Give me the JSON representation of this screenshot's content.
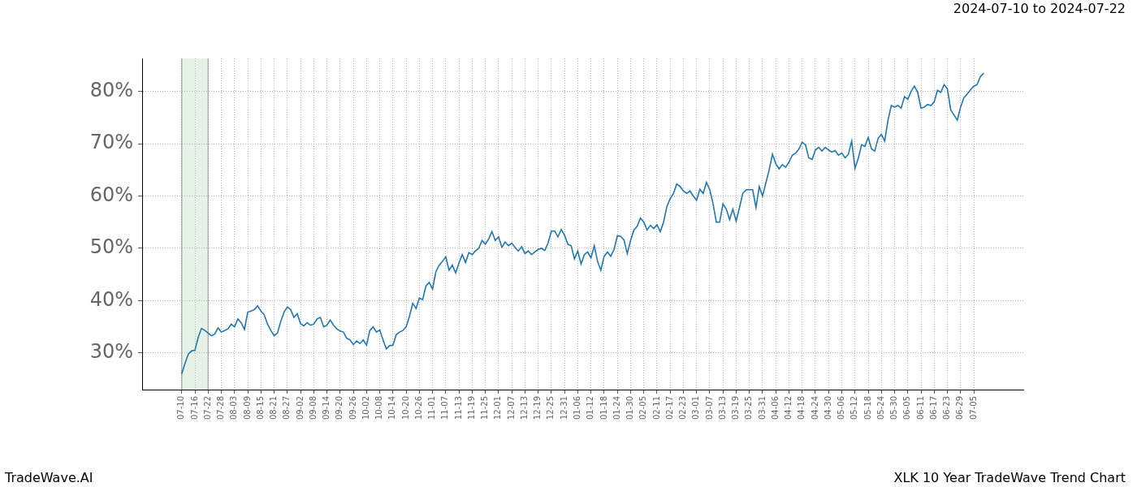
{
  "chart_data": {
    "type": "line",
    "title": "2024-07-10 to 2024-07-22",
    "footer_left": "TradeWave.AI",
    "footer_right": "XLK 10 Year TradeWave Trend Chart",
    "color": "#1f77b4",
    "grid": true,
    "shaded_range": [
      "07-10",
      "07-22"
    ],
    "ylim": [
      23,
      86.3
    ],
    "yticks": [
      {
        "value": 30,
        "label": "30%"
      },
      {
        "value": 40,
        "label": "40%"
      },
      {
        "value": 50,
        "label": "50%"
      },
      {
        "value": 60,
        "label": "60%"
      },
      {
        "value": 70,
        "label": "70%"
      },
      {
        "value": 80,
        "label": "80%"
      }
    ],
    "categories": [
      null,
      null,
      null,
      null,
      null,
      null,
      null,
      null,
      null,
      null,
      null,
      null,
      "07-10",
      null,
      null,
      null,
      "07-16",
      null,
      null,
      null,
      "07-22",
      null,
      null,
      null,
      "07-28",
      null,
      null,
      null,
      "08-03",
      null,
      null,
      null,
      "08-09",
      null,
      null,
      null,
      "08-15",
      null,
      null,
      null,
      "08-21",
      null,
      null,
      null,
      "08-27",
      null,
      null,
      null,
      "09-02",
      null,
      null,
      null,
      "09-08",
      null,
      null,
      null,
      "09-14",
      null,
      null,
      null,
      "09-20",
      null,
      null,
      null,
      "09-26",
      null,
      null,
      null,
      "10-02",
      null,
      null,
      null,
      "10-08",
      null,
      null,
      null,
      "10-14",
      null,
      null,
      null,
      "10-20",
      null,
      null,
      null,
      "10-26",
      null,
      null,
      null,
      "11-01",
      null,
      null,
      null,
      "11-07",
      null,
      null,
      null,
      "11-13",
      null,
      null,
      null,
      "11-19",
      null,
      null,
      null,
      "11-25",
      null,
      null,
      null,
      "12-01",
      null,
      null,
      null,
      "12-07",
      null,
      null,
      null,
      "12-13",
      null,
      null,
      null,
      "12-19",
      null,
      null,
      null,
      "12-25",
      null,
      null,
      null,
      "12-31",
      null,
      null,
      null,
      "01-06",
      null,
      null,
      null,
      "01-12",
      null,
      null,
      null,
      "01-18",
      null,
      null,
      null,
      "01-24",
      null,
      null,
      null,
      "01-30",
      null,
      null,
      null,
      "02-05",
      null,
      null,
      null,
      "02-11",
      null,
      null,
      null,
      "02-17",
      null,
      null,
      null,
      "02-23",
      null,
      null,
      null,
      "03-01",
      null,
      null,
      null,
      "03-07",
      null,
      null,
      null,
      "03-13",
      null,
      null,
      null,
      "03-19",
      null,
      null,
      null,
      "03-25",
      null,
      null,
      null,
      "03-31",
      null,
      null,
      null,
      "04-06",
      null,
      null,
      null,
      "04-12",
      null,
      null,
      null,
      "04-18",
      null,
      null,
      null,
      "04-24",
      null,
      null,
      null,
      "04-30",
      null,
      null,
      null,
      "05-06",
      null,
      null,
      null,
      "05-12",
      null,
      null,
      null,
      "05-18",
      null,
      null,
      null,
      "05-24",
      null,
      null,
      null,
      "05-30",
      null,
      null,
      null,
      "06-05",
      null,
      null,
      null,
      "06-11",
      null,
      null,
      null,
      "06-17",
      null,
      null,
      null,
      "06-23",
      null,
      null,
      null,
      "06-29",
      null,
      null,
      null,
      "07-05",
      null,
      null,
      null,
      null,
      null,
      null,
      null,
      null,
      null,
      null,
      null,
      null,
      null,
      null,
      null
    ],
    "values": [
      null,
      null,
      null,
      null,
      null,
      null,
      null,
      null,
      null,
      null,
      null,
      null,
      26,
      28,
      29.8,
      30.4,
      30.5,
      33,
      34.7,
      34.3,
      33.8,
      33.3,
      33.6,
      34.8,
      34,
      34.3,
      34.6,
      35.5,
      35,
      36.5,
      35.8,
      34.5,
      37.8,
      38,
      38.3,
      39,
      38,
      37.3,
      35.5,
      34.3,
      33.3,
      33.8,
      36,
      37.8,
      38.8,
      38.3,
      36.8,
      37.5,
      35.6,
      35.2,
      35.8,
      35.3,
      35.5,
      36.5,
      36.8,
      35,
      35.3,
      36.3,
      35.3,
      34.6,
      34.2,
      34,
      32.8,
      32.5,
      31.6,
      32.3,
      31.8,
      32.5,
      31.5,
      34.3,
      35,
      34,
      34.4,
      32.5,
      30.8,
      31.4,
      31.5,
      33.5,
      34,
      34.3,
      35,
      37,
      39.5,
      38.5,
      40.5,
      40.2,
      42.8,
      43.5,
      42.2,
      45.5,
      46.8,
      47.5,
      48.4,
      45.8,
      46.8,
      45.3,
      47.2,
      48.8,
      47.3,
      49.2,
      48.8,
      49.5,
      50,
      51.5,
      50.8,
      51.8,
      53.2,
      51.5,
      52.2,
      50.2,
      51.2,
      50.5,
      51,
      50.2,
      49.5,
      50.3,
      49,
      49.5,
      48.8,
      49.3,
      49.8,
      50,
      49.6,
      51,
      53.3,
      53.3,
      52.2,
      53.6,
      52.5,
      50.8,
      50.5,
      48,
      49.5,
      47,
      48.8,
      49.3,
      48.2,
      50.5,
      47.5,
      45.8,
      48.5,
      49.3,
      48.5,
      49.8,
      52.4,
      52.3,
      51.6,
      49,
      51.5,
      53.5,
      54.2,
      55.8,
      55,
      53.5,
      54.4,
      53.8,
      54.5,
      53.2,
      55,
      58,
      59.5,
      60.5,
      62.3,
      61.8,
      61,
      60.5,
      61,
      60,
      59.2,
      61.3,
      60.5,
      62.6,
      61.2,
      58.5,
      55,
      55,
      58.5,
      57.5,
      55.5,
      57.5,
      55.2,
      57.8,
      60.5,
      61.2,
      61.2,
      61.2,
      57.8,
      61.8,
      60,
      62.5,
      65,
      68,
      66.2,
      65.2,
      66,
      65.5,
      66.5,
      67.8,
      68.2,
      69,
      70.3,
      69.8,
      67.3,
      67,
      68.8,
      69.3,
      68.6,
      69.3,
      68.8,
      68.4,
      68.7,
      67.8,
      68.2,
      67.3,
      68,
      70.5,
      65.3,
      67.2,
      69.8,
      69.5,
      71.2,
      69,
      68.6,
      71,
      71.8,
      70.5,
      74.5,
      77.3,
      77,
      77.3,
      76.8,
      79,
      78.5,
      80,
      81,
      79.8,
      76.8,
      77,
      77.5,
      77.3,
      78,
      80.2,
      79.8,
      81.3,
      80.5,
      76.5,
      75.5,
      74.5,
      77,
      78.8,
      79.5,
      80.3,
      81,
      81.3,
      82.8,
      83.5,
      null,
      null,
      null,
      null,
      null,
      null,
      null,
      null,
      null,
      null,
      null,
      null
    ]
  }
}
